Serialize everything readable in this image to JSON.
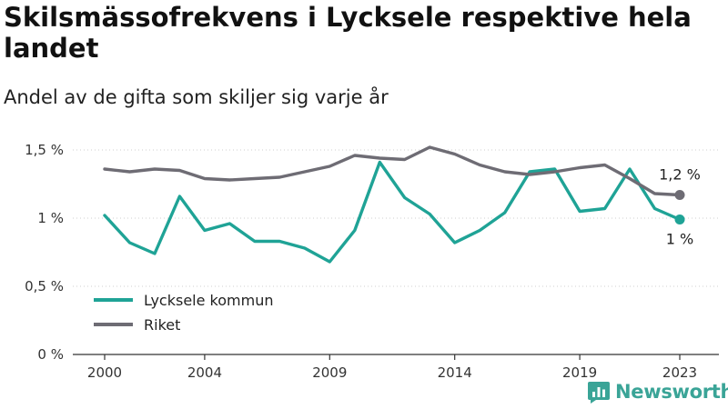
{
  "chart_data": {
    "type": "line",
    "title": "Skilsmässofrekvens i Lycksele respektive hela landet",
    "subtitle": "Andel av de gifta som skiljer sig varje år",
    "x": [
      2000,
      2001,
      2002,
      2003,
      2004,
      2005,
      2006,
      2007,
      2008,
      2009,
      2010,
      2011,
      2012,
      2013,
      2014,
      2015,
      2016,
      2017,
      2018,
      2019,
      2020,
      2021,
      2022,
      2023
    ],
    "series": [
      {
        "name": "Lycksele kommun",
        "color": "#1fa396",
        "values": [
          1.02,
          0.82,
          0.74,
          1.16,
          0.91,
          0.96,
          0.83,
          0.83,
          0.78,
          0.68,
          0.91,
          1.41,
          1.15,
          1.03,
          0.82,
          0.91,
          1.04,
          1.34,
          1.36,
          1.05,
          1.07,
          1.36,
          1.07,
          0.99
        ],
        "end_label": "1 %"
      },
      {
        "name": "Riket",
        "color": "#6e6c74",
        "values": [
          1.36,
          1.34,
          1.36,
          1.35,
          1.29,
          1.28,
          1.29,
          1.3,
          1.34,
          1.38,
          1.46,
          1.44,
          1.43,
          1.52,
          1.47,
          1.39,
          1.34,
          1.32,
          1.34,
          1.37,
          1.39,
          1.29,
          1.18,
          1.17
        ],
        "end_label": "1,2 %"
      }
    ],
    "ylim": [
      0,
      1.6
    ],
    "yticks": [
      0,
      0.5,
      1,
      1.5
    ],
    "ytick_labels": [
      "0 %",
      "0,5 %",
      "1 %",
      "1,5 %"
    ],
    "xticks": [
      2000,
      2004,
      2009,
      2014,
      2019,
      2023
    ],
    "xtick_labels": [
      "2000",
      "2004",
      "2009",
      "2014",
      "2019",
      "2023"
    ],
    "grid": "horizontal",
    "legend": "bottom-left",
    "source": "Newsworthy"
  }
}
